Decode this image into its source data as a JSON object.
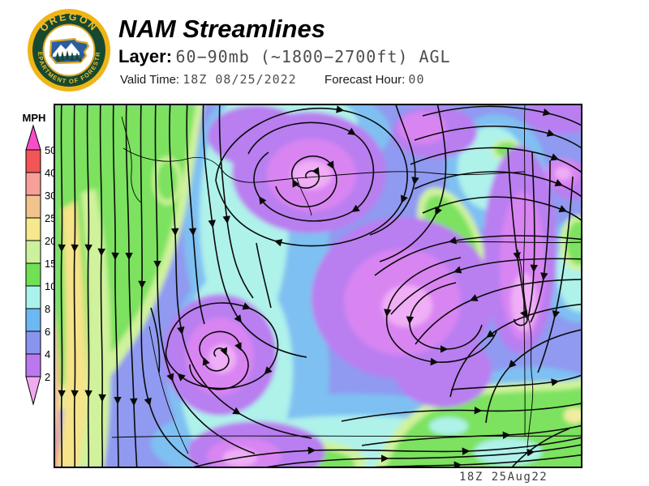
{
  "header": {
    "title": "NAM Streamlines",
    "layer_label": "Layer:",
    "layer_value": "60−90mb (~1800−2700ft) AGL",
    "valid_time_label": "Valid Time:",
    "valid_time_value": "18Z  08/25/2022",
    "forecast_hour_label": "Forecast Hour:",
    "forecast_hour_value": "00",
    "logo": {
      "org_name_top": "OREGON",
      "org_name_arc": "DEPARTMENT OF FORESTRY",
      "ring_color": "#efb516",
      "band_color": "#17492f",
      "text_color": "#f0c030"
    }
  },
  "legend": {
    "units": "MPH",
    "tick_values": [
      "50",
      "40",
      "30",
      "25",
      "20",
      "15",
      "10",
      "8",
      "6",
      "4",
      "2"
    ],
    "band_colors": [
      "#f94cc8",
      "#f25555",
      "#f7a099",
      "#f1c38e",
      "#f5e88d",
      "#cdf09c",
      "#70e055",
      "#aaf3ec",
      "#6cb8f2",
      "#8894ee",
      "#bb78ee",
      "#f0abf0"
    ]
  },
  "map": {
    "timestamp": "18Z 25Aug22",
    "field_colors": {
      "base_4_6": "#8f9af0",
      "blue_6_8": "#7fc0f2",
      "cyan_8_10": "#aff2ea",
      "green_10_15": "#7ce25e",
      "lightgreen_15_20": "#d0f29c",
      "yellow_20_25": "#f6e38a",
      "peach_25_30": "#f6c289",
      "orange_30_40": "#f6a06b",
      "purple_2_4": "#b97ef0",
      "magenta_low": "#d885f2",
      "pink_calm": "#efaef5"
    },
    "streamline_color": "#0a0a0a"
  }
}
